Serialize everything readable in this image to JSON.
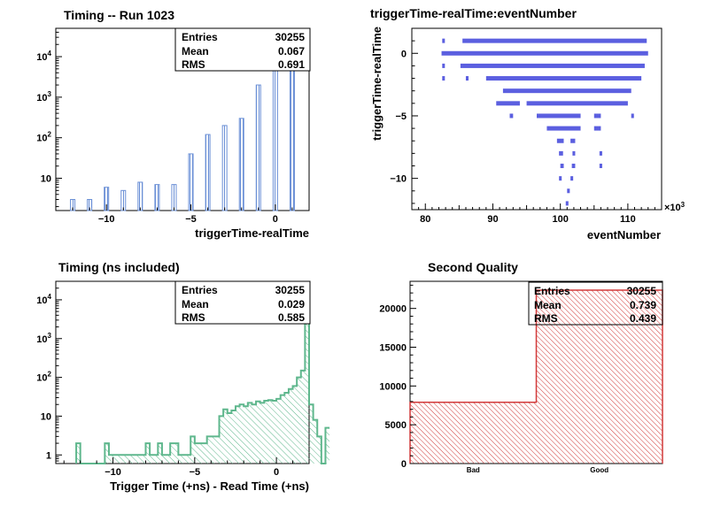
{
  "chart_data": [
    {
      "type": "bar",
      "title": "Timing -- Run 1023",
      "xlabel": "triggerTime-realTime",
      "ylabel": "",
      "xlim": [
        -13,
        2
      ],
      "ylim": [
        1.6,
        50000
      ],
      "yscale": "log",
      "x_ticks": [
        -10,
        -5,
        0
      ],
      "y_ticks": [
        {
          "value": 10,
          "label": "10"
        },
        {
          "value": 100,
          "label": "10^2"
        },
        {
          "value": 1000,
          "label": "10^3"
        },
        {
          "value": 10000,
          "label": "10^4"
        }
      ],
      "x": [
        -12,
        -11,
        -10,
        -9,
        -8,
        -7,
        -6,
        -5,
        -4,
        -3,
        -2,
        -1,
        0,
        1
      ],
      "values": [
        3,
        3,
        6,
        5,
        8,
        7,
        7,
        40,
        120,
        200,
        300,
        2000,
        28000,
        8000
      ],
      "color": "#6a8fd6",
      "stats": {
        "entries_label": "Entries",
        "entries": "30255",
        "mean_label": "Mean",
        "mean": "0.067",
        "rms_label": "RMS",
        "rms": "0.691"
      },
      "grid": false
    },
    {
      "type": "scatter",
      "title": "triggerTime-realTime:eventNumber",
      "xlabel": "eventNumber",
      "ylabel": "triggerTime-realTime",
      "x_exponent": "×10",
      "x_exponent_power": "3",
      "xlim": [
        78,
        115
      ],
      "ylim": [
        -12.5,
        2
      ],
      "x_ticks": [
        80,
        90,
        100,
        110
      ],
      "y_ticks": [
        0,
        -5,
        -10
      ],
      "color": "#5b5fe0",
      "rows": [
        {
          "y": 1,
          "ranges": [
            [
              82.5,
              82.7
            ],
            [
              85.5,
              112.8
            ]
          ]
        },
        {
          "y": 0,
          "ranges": [
            [
              82.4,
              113
            ]
          ]
        },
        {
          "y": -1,
          "ranges": [
            [
              82.5,
              82.7
            ],
            [
              85.2,
              112.5
            ]
          ]
        },
        {
          "y": -2,
          "ranges": [
            [
              82.5,
              82.7
            ],
            [
              86,
              86.4
            ],
            [
              89,
              112
            ]
          ]
        },
        {
          "y": -3,
          "ranges": [
            [
              91.5,
              110.5
            ]
          ]
        },
        {
          "y": -4,
          "ranges": [
            [
              90.5,
              94
            ],
            [
              95,
              110
            ]
          ]
        },
        {
          "y": -5,
          "ranges": [
            [
              92.5,
              93
            ],
            [
              96.5,
              103
            ],
            [
              105,
              106
            ],
            [
              110.5,
              110.9
            ]
          ]
        },
        {
          "y": -6,
          "ranges": [
            [
              98,
              103
            ],
            [
              105,
              106
            ]
          ]
        },
        {
          "y": -7,
          "ranges": [
            [
              99.5,
              100.5
            ],
            [
              101.5,
              102.2
            ]
          ]
        },
        {
          "y": -8,
          "ranges": [
            [
              99.8,
              100.4
            ],
            [
              101.8,
              102.2
            ],
            [
              105.8,
              106.2
            ]
          ]
        },
        {
          "y": -9,
          "ranges": [
            [
              100,
              100.5
            ],
            [
              101.7,
              102.2
            ],
            [
              105.8,
              106.2
            ]
          ]
        },
        {
          "y": -10,
          "ranges": [
            [
              99.8,
              100.2
            ],
            [
              101.5,
              101.9
            ]
          ]
        },
        {
          "y": -11,
          "ranges": [
            [
              101,
              101.4
            ]
          ]
        },
        {
          "y": -12,
          "ranges": [
            [
              100.8,
              101.2
            ]
          ]
        }
      ],
      "grid": false
    },
    {
      "type": "bar",
      "title": "Timing (ns included)",
      "xlabel": "Trigger Time (+ns) - Read Time (+ns)",
      "ylabel": "",
      "xlim": [
        -13.5,
        2
      ],
      "ylim": [
        0.6,
        30000
      ],
      "yscale": "log",
      "x_ticks": [
        -10,
        -5,
        0
      ],
      "y_ticks": [
        {
          "value": 1,
          "label": "1"
        },
        {
          "value": 10,
          "label": "10"
        },
        {
          "value": 100,
          "label": "10^2"
        },
        {
          "value": 1000,
          "label": "10^3"
        },
        {
          "value": 10000,
          "label": "10^4"
        }
      ],
      "bin_start": -12.25,
      "bin_width": 0.25,
      "values": [
        2,
        0,
        0,
        0,
        0,
        0,
        0,
        2,
        1,
        1,
        1,
        1,
        1,
        1,
        1,
        1,
        1,
        2,
        1,
        1,
        2,
        1,
        1,
        2,
        2,
        1,
        1,
        1,
        3,
        2,
        2,
        2,
        3,
        3,
        3,
        10,
        15,
        12,
        14,
        18,
        20,
        18,
        22,
        20,
        24,
        22,
        25,
        26,
        25,
        28,
        35,
        40,
        50,
        60,
        100,
        150,
        4000,
        20,
        8,
        3,
        0,
        5
      ],
      "color": "#5fb78d",
      "stats": {
        "entries_label": "Entries",
        "entries": "30255",
        "mean_label": "Mean",
        "mean": "0.029",
        "rms_label": "RMS",
        "rms": "0.585"
      },
      "grid": false
    },
    {
      "type": "bar",
      "title": "Second Quality",
      "xlabel": "",
      "ylabel": "",
      "categories": [
        "Bad",
        "Good"
      ],
      "values": [
        7900,
        22355
      ],
      "ylim": [
        0,
        23500
      ],
      "y_ticks": [
        0,
        5000,
        10000,
        15000,
        20000
      ],
      "color": "#d23a3a",
      "stats": {
        "entries_label": "Entries",
        "entries": "30255",
        "mean_label": "Mean",
        "mean": "0.739",
        "rms_label": "RMS",
        "rms": "0.439"
      },
      "grid": false
    }
  ]
}
